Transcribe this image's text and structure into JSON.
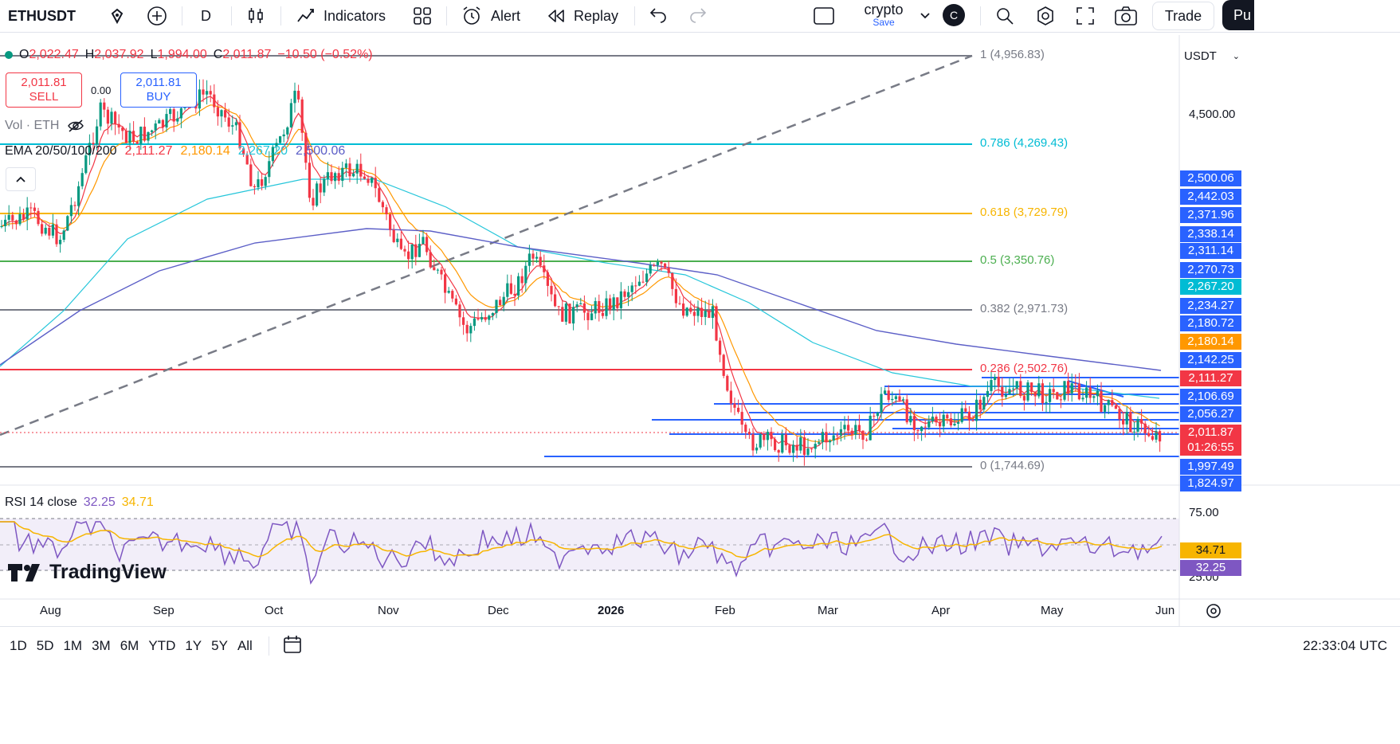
{
  "toolbar": {
    "symbol": "ETHUSDT",
    "interval": "D",
    "indicators_label": "Indicators",
    "alert_label": "Alert",
    "replay_label": "Replay",
    "layout_name": "crypto",
    "layout_sub": "Save",
    "avatar_letter": "C",
    "trade_label": "Trade",
    "publish_partial": "Pu"
  },
  "ohlc": {
    "o_label": "O",
    "o": "2,022.47",
    "h_label": "H",
    "h": "2,037.92",
    "l_label": "L",
    "l": "1,994.00",
    "c_label": "C",
    "c": "2,011.87",
    "change": "−10.50 (−0.52%)"
  },
  "sell": {
    "price": "2,011.81",
    "label": "SELL"
  },
  "spread": "0.00",
  "buy": {
    "price": "2,011.81",
    "label": "BUY"
  },
  "vol_label": "Vol · ETH",
  "ema": {
    "label": "EMA 20/50/100/200",
    "v20": "2,111.27",
    "v50": "2,180.14",
    "v100": "2,267.20",
    "v200": "2,500.06"
  },
  "fib": [
    {
      "level": "1 (4,956.83)",
      "color": "#787b86"
    },
    {
      "level": "0.786 (4,269.43)",
      "color": "#00bcd4"
    },
    {
      "level": "0.618 (3,729.79)",
      "color": "#f7b500"
    },
    {
      "level": "0.5 (3,350.76)",
      "color": "#4caf50"
    },
    {
      "level": "0.382 (2,971.73)",
      "color": "#787b86"
    },
    {
      "level": "0.236 (2,502.76)",
      "color": "#f23645"
    },
    {
      "level": "0 (1,744.69)",
      "color": "#787b86"
    }
  ],
  "price_axis": {
    "currency": "USDT",
    "tick_4500": "4,500.00",
    "labels": [
      {
        "text": "2,500.06",
        "color": "#2962ff"
      },
      {
        "text": "2,442.03",
        "color": "#2962ff"
      },
      {
        "text": "2,371.96",
        "color": "#2962ff"
      },
      {
        "text": "2,338.14",
        "color": "#2962ff"
      },
      {
        "text": "2,311.14",
        "color": "#2962ff"
      },
      {
        "text": "2,270.73",
        "color": "#2962ff"
      },
      {
        "text": "2,267.20",
        "color": "#00bcd4"
      },
      {
        "text": "2,234.27",
        "color": "#2962ff"
      },
      {
        "text": "2,180.72",
        "color": "#2962ff"
      },
      {
        "text": "2,180.14",
        "color": "#ff9800"
      },
      {
        "text": "2,142.25",
        "color": "#2962ff"
      },
      {
        "text": "2,111.27",
        "color": "#f23645"
      },
      {
        "text": "2,106.69",
        "color": "#2962ff"
      },
      {
        "text": "2,056.27",
        "color": "#2962ff"
      },
      {
        "text": "2,011.87",
        "color": "#f23645"
      },
      {
        "text": "01:26:55",
        "color": "#f23645"
      },
      {
        "text": "1,997.49",
        "color": "#2962ff"
      },
      {
        "text": "1,824.97",
        "color": "#2962ff"
      }
    ]
  },
  "rsi": {
    "label": "RSI 14 close",
    "value": "32.25",
    "ma": "34.71",
    "tick_75": "75.00",
    "tick_25": "25.00"
  },
  "time_axis": [
    "Aug",
    "Sep",
    "Oct",
    "Nov",
    "Dec",
    "2026",
    "Feb",
    "Mar",
    "Apr",
    "May",
    "Jun"
  ],
  "watermark": "TradingView",
  "ranges": [
    "1D",
    "5D",
    "1M",
    "3M",
    "6M",
    "YTD",
    "1Y",
    "5Y",
    "All"
  ],
  "clock": "22:33:04 UTC",
  "colors": {
    "up": "#089981",
    "down": "#f23645",
    "ema20": "#f23645",
    "ema50": "#ff9800",
    "ema100": "#26c6da",
    "ema200": "#5c5fc7",
    "hline": "#2962ff"
  }
}
